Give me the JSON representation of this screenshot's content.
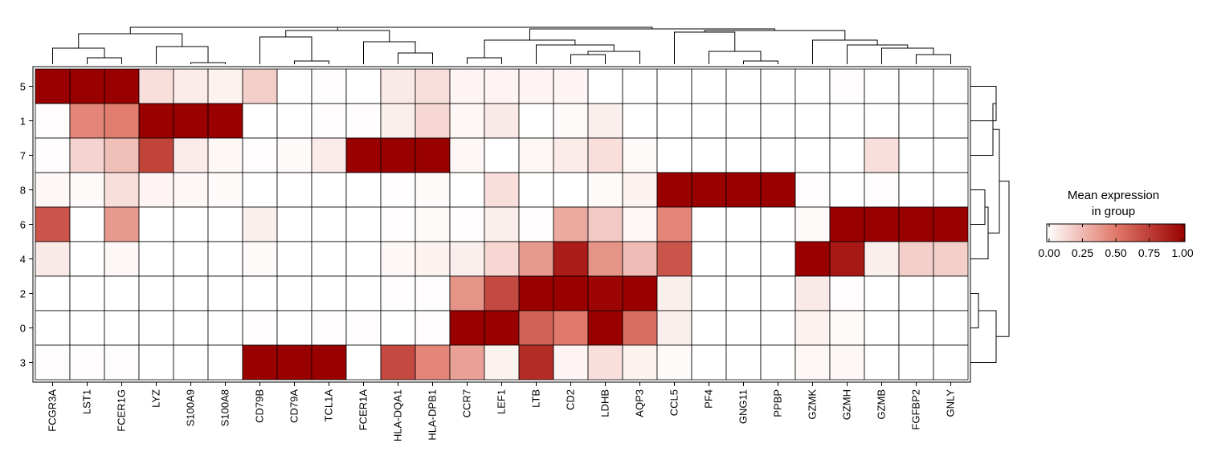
{
  "chart_data": {
    "type": "heatmap",
    "title": "",
    "xlabel": "",
    "ylabel": "",
    "genes": [
      "FCGR3A",
      "LST1",
      "FCER1G",
      "LYZ",
      "S100A9",
      "S100A8",
      "CD79B",
      "CD79A",
      "TCL1A",
      "FCER1A",
      "HLA-DQA1",
      "HLA-DPB1",
      "CCR7",
      "LEF1",
      "LTB",
      "CD2",
      "LDHB",
      "AQP3",
      "CCL5",
      "PF4",
      "GNG11",
      "PPBP",
      "GZMK",
      "GZMH",
      "GZMB",
      "FGFBP2",
      "GNLY"
    ],
    "groups": [
      "5",
      "1",
      "7",
      "8",
      "6",
      "4",
      "2",
      "0",
      "3"
    ],
    "values": [
      [
        1.0,
        1.0,
        1.0,
        0.12,
        0.07,
        0.05,
        0.18,
        0.0,
        0.01,
        0.0,
        0.08,
        0.12,
        0.04,
        0.04,
        0.04,
        0.04,
        0.0,
        0.0,
        0.0,
        0.0,
        0.0,
        0.0,
        0.0,
        0.01,
        0.0,
        0.0,
        0.0
      ],
      [
        0.01,
        0.45,
        0.48,
        1.0,
        1.0,
        1.0,
        0.0,
        0.0,
        0.01,
        0.01,
        0.06,
        0.15,
        0.03,
        0.08,
        0.0,
        0.02,
        0.06,
        0.0,
        0.0,
        0.0,
        0.0,
        0.0,
        0.0,
        0.0,
        0.0,
        0.0,
        0.0
      ],
      [
        0.01,
        0.16,
        0.24,
        0.72,
        0.07,
        0.03,
        0.01,
        0.02,
        0.07,
        1.0,
        1.0,
        1.0,
        0.03,
        0.0,
        0.03,
        0.07,
        0.12,
        0.02,
        0.0,
        0.0,
        0.0,
        0.0,
        0.0,
        0.0,
        0.12,
        0.0,
        0.0
      ],
      [
        0.03,
        0.02,
        0.12,
        0.04,
        0.03,
        0.02,
        0.0,
        0.0,
        0.0,
        0.0,
        0.01,
        0.02,
        0.0,
        0.12,
        0.0,
        0.0,
        0.02,
        0.05,
        1.0,
        1.0,
        1.0,
        1.0,
        0.01,
        0.0,
        0.01,
        0.0,
        0.0
      ],
      [
        0.65,
        0.0,
        0.38,
        0.0,
        0.0,
        0.0,
        0.06,
        0.0,
        0.0,
        0.0,
        0.01,
        0.02,
        0.01,
        0.06,
        0.01,
        0.32,
        0.2,
        0.03,
        0.45,
        0.0,
        0.0,
        0.0,
        0.02,
        1.0,
        1.0,
        1.0,
        1.0
      ],
      [
        0.08,
        0.0,
        0.03,
        0.0,
        0.0,
        0.0,
        0.02,
        0.0,
        0.0,
        0.0,
        0.03,
        0.05,
        0.06,
        0.15,
        0.38,
        0.88,
        0.4,
        0.25,
        0.65,
        0.0,
        0.0,
        0.0,
        1.0,
        0.9,
        0.06,
        0.18,
        0.18
      ],
      [
        0.0,
        0.0,
        0.0,
        0.0,
        0.0,
        0.0,
        0.0,
        0.0,
        0.0,
        0.0,
        0.01,
        0.01,
        0.4,
        0.7,
        1.0,
        1.0,
        0.98,
        1.0,
        0.06,
        0.0,
        0.0,
        0.0,
        0.08,
        0.01,
        0.0,
        0.0,
        0.0
      ],
      [
        0.0,
        0.0,
        0.0,
        0.0,
        0.0,
        0.0,
        0.01,
        0.0,
        0.01,
        0.01,
        0.0,
        0.01,
        1.0,
        1.0,
        0.6,
        0.5,
        1.0,
        0.55,
        0.06,
        0.0,
        0.0,
        0.0,
        0.05,
        0.02,
        0.0,
        0.0,
        0.0
      ],
      [
        0.01,
        0.01,
        0.01,
        0.0,
        0.0,
        0.0,
        1.0,
        1.0,
        1.0,
        0.0,
        0.7,
        0.45,
        0.35,
        0.05,
        0.82,
        0.04,
        0.12,
        0.05,
        0.02,
        0.0,
        0.0,
        0.0,
        0.03,
        0.03,
        0.0,
        0.0,
        0.0
      ]
    ],
    "colorbar": {
      "title_line1": "Mean expression",
      "title_line2": "in group",
      "ticks": [
        "0.00",
        "0.25",
        "0.50",
        "0.75",
        "1.00"
      ],
      "range": [
        0,
        1
      ],
      "color_low": "#ffffff",
      "color_mid": "#e0796a",
      "color_high": "#990000"
    },
    "grid": true,
    "legend_position": "right",
    "has_top_dendrogram": true,
    "has_right_dendrogram": true
  }
}
